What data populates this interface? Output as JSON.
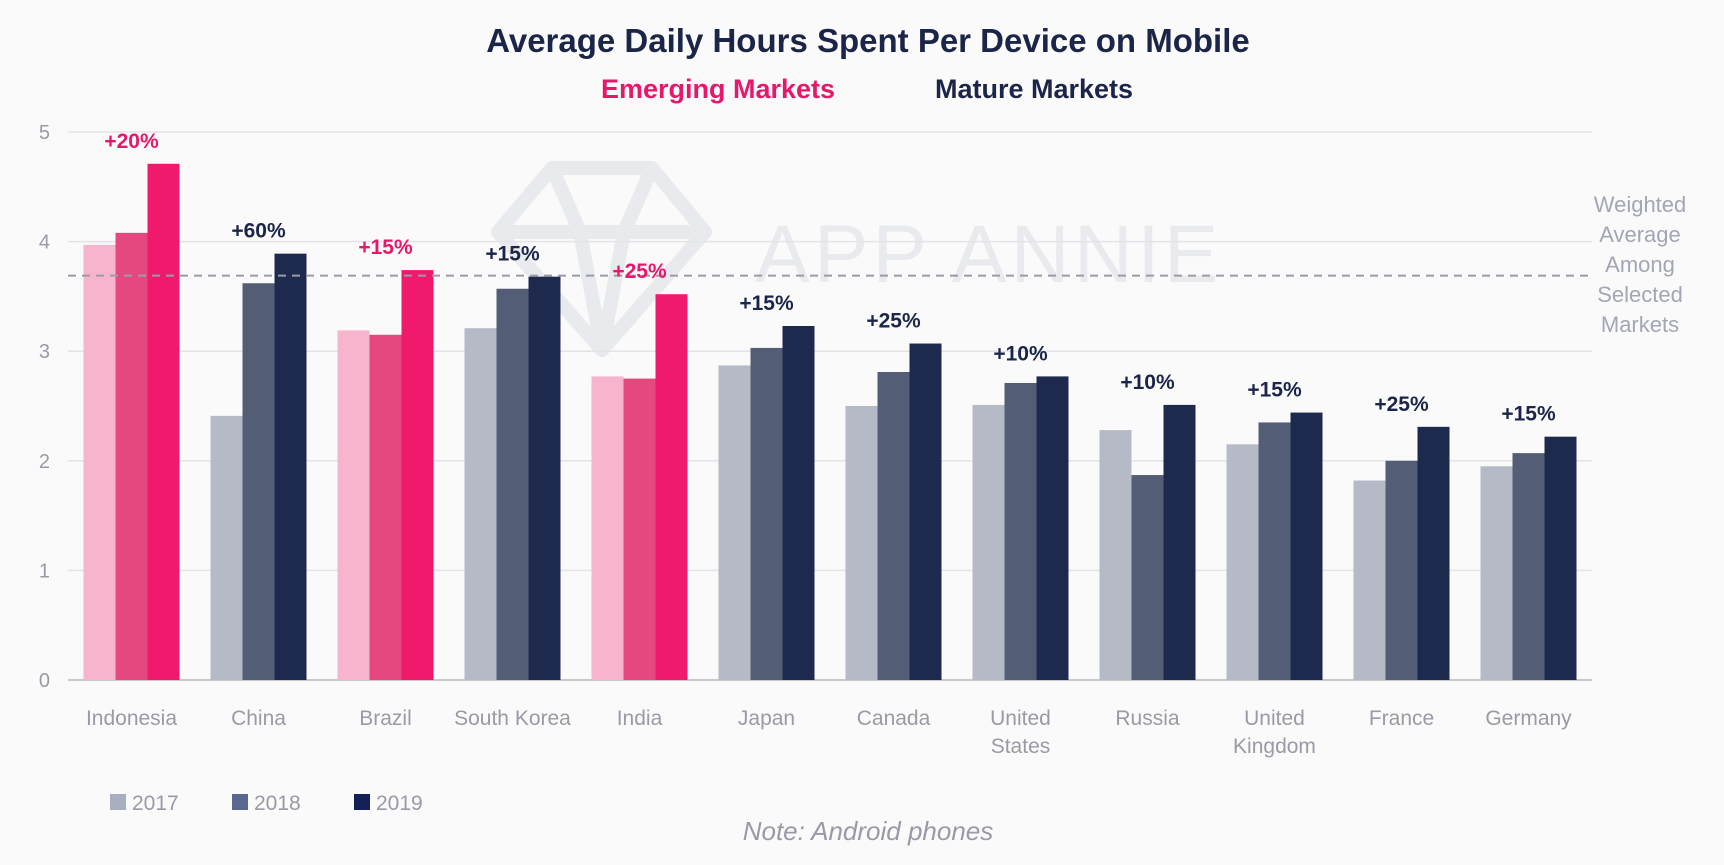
{
  "chart_data": {
    "type": "bar",
    "title": "Average Daily Hours Spent Per Device on Mobile",
    "subtitles": {
      "emerging": "Emerging Markets",
      "mature": "Mature Markets"
    },
    "categories": [
      "Indonesia",
      "China",
      "Brazil",
      "South Korea",
      "India",
      "Japan",
      "Canada",
      "United States",
      "Russia",
      "United Kingdom",
      "France",
      "Germany"
    ],
    "market_group": [
      "emerging",
      "mature",
      "emerging",
      "mature",
      "emerging",
      "mature",
      "mature",
      "mature",
      "mature",
      "mature",
      "mature",
      "mature"
    ],
    "series": [
      {
        "name": "2017",
        "values": [
          3.97,
          2.41,
          3.19,
          3.21,
          2.77,
          2.87,
          2.5,
          2.51,
          2.28,
          2.15,
          1.82,
          1.95
        ]
      },
      {
        "name": "2018",
        "values": [
          4.08,
          3.62,
          3.15,
          3.57,
          2.75,
          3.03,
          2.81,
          2.71,
          1.87,
          2.35,
          2.0,
          2.07
        ]
      },
      {
        "name": "2019",
        "values": [
          4.71,
          3.89,
          3.74,
          3.68,
          3.52,
          3.23,
          3.07,
          2.77,
          2.51,
          2.44,
          2.31,
          2.22
        ]
      }
    ],
    "growth_labels": [
      "+20%",
      "+60%",
      "+15%",
      "+15%",
      "+25%",
      "+15%",
      "+25%",
      "+10%",
      "+10%",
      "+15%",
      "+25%",
      "+15%"
    ],
    "reference_line": {
      "value": 3.69,
      "label": "Weighted Average Among Selected Markets"
    },
    "ylim": [
      0,
      5
    ],
    "yticks": [
      0,
      1,
      2,
      3,
      4,
      5
    ],
    "grid": true,
    "legend_placement": "bottom-left",
    "watermark": "APP ANNIE",
    "note": "Note: Android phones"
  },
  "colors": {
    "emerging": [
      "#f7b4cd",
      "#e5487f",
      "#f01a6c"
    ],
    "mature": [
      "#b6bac6",
      "#535d75",
      "#1d2a4e"
    ],
    "emerging_text": "#e5186b",
    "mature_text": "#1b2548",
    "legend_swatches": [
      "#a9aec0",
      "#5a6791",
      "#142158"
    ],
    "axis_text": "#9a9aa6",
    "ref_line": "#9a9aa8"
  }
}
